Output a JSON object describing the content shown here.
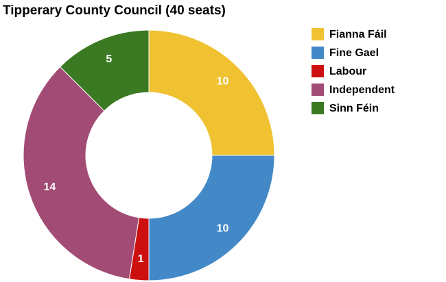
{
  "chart_data": {
    "type": "donut",
    "title": "Tipperary County Council (40 seats)",
    "categories": [
      "Fianna Fáil",
      "Fine Gael",
      "Labour",
      "Independent",
      "Sinn Féin"
    ],
    "values": [
      10,
      10,
      1,
      14,
      5
    ],
    "colors": [
      "#f0c232",
      "#4389c8",
      "#cc1010",
      "#a24b74",
      "#3b7a23"
    ],
    "legend": "right"
  }
}
